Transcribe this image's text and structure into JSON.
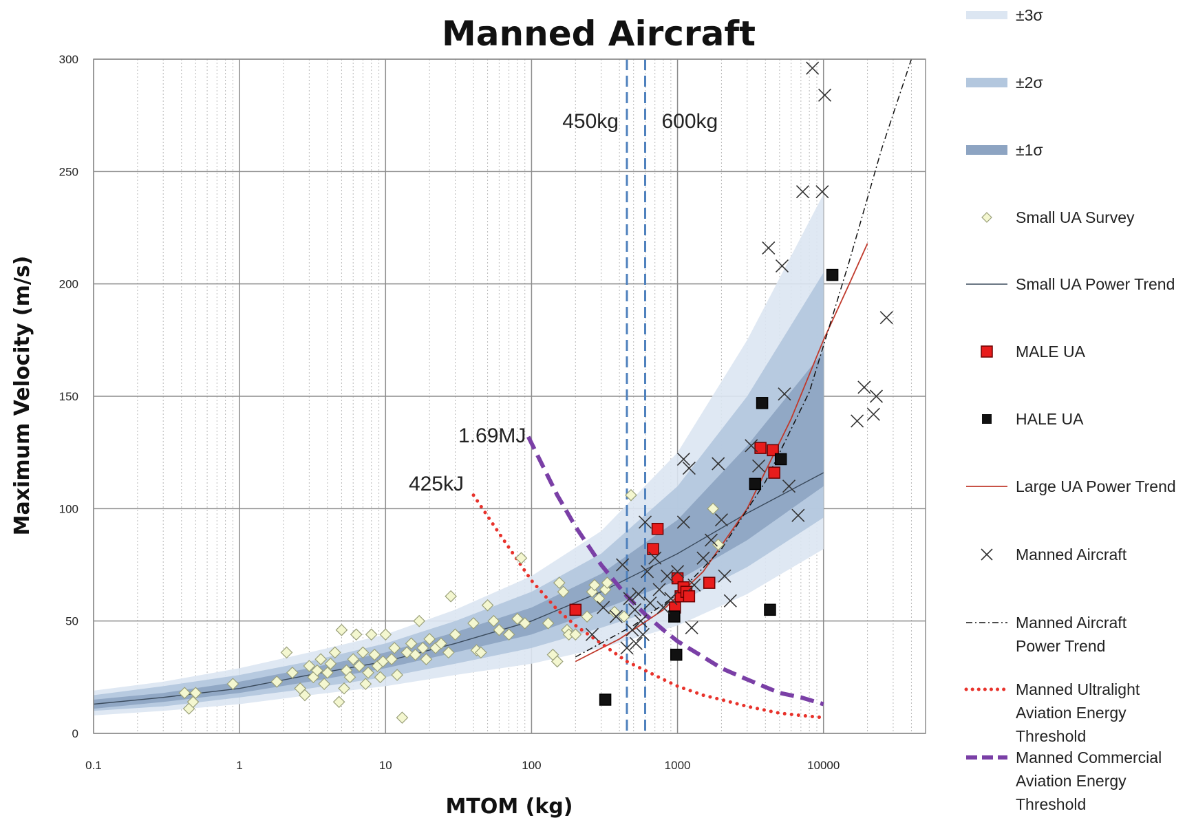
{
  "chart_data": {
    "type": "scatter",
    "title": "Manned Aircraft",
    "xlabel": "MTOM (kg)",
    "ylabel": "Maximum Velocity (m/s)",
    "xscale": "log",
    "xlim": [
      0.1,
      50000
    ],
    "ylim": [
      0,
      300
    ],
    "x_ticks": [
      0.1,
      1,
      10,
      100,
      1000,
      10000
    ],
    "x_tick_labels": [
      "0.1",
      "1",
      "10",
      "100",
      "1000",
      "10000"
    ],
    "y_ticks": [
      0,
      50,
      100,
      150,
      200,
      250,
      300
    ],
    "y_tick_labels": [
      "0",
      "50",
      "100",
      "150",
      "200",
      "250",
      "300"
    ],
    "grid": true,
    "legend_position": "right",
    "colors": {
      "band3": "#dce6f2",
      "band2": "#b3c7de",
      "band1": "#8da4c2",
      "small_ua": "#f4f7d0",
      "male": "#e81c1c",
      "hale": "#111111",
      "large_trend": "#c0392b",
      "ultralight": "#e8322b",
      "commercial": "#7a3fa6",
      "vline": "#4f81bd"
    },
    "annotations": [
      {
        "text": "450kg",
        "x": 450
      },
      {
        "text": "600kg",
        "x": 600
      },
      {
        "text": "1.69MJ",
        "x": 100,
        "y": 133
      },
      {
        "text": "425kJ",
        "x": 40,
        "y": 105
      }
    ],
    "vertical_lines": [
      450,
      600
    ],
    "bands": [
      {
        "name": "±3σ",
        "x": [
          0.1,
          0.3,
          1,
          3,
          10,
          30,
          100,
          300,
          1000,
          3000,
          10000
        ],
        "low": [
          8,
          10,
          13,
          17,
          21,
          26,
          31,
          38,
          48,
          62,
          82
        ],
        "high": [
          19,
          23,
          29,
          36,
          44,
          55,
          70,
          90,
          125,
          175,
          240
        ]
      },
      {
        "name": "±2σ",
        "x": [
          0.1,
          0.3,
          1,
          3,
          10,
          30,
          100,
          300,
          1000,
          3000,
          10000
        ],
        "low": [
          10,
          12,
          16,
          20,
          25,
          31,
          38,
          47,
          58,
          74,
          96
        ],
        "high": [
          17,
          21,
          26,
          32,
          40,
          50,
          63,
          80,
          110,
          150,
          205
        ]
      },
      {
        "name": "±1σ",
        "x": [
          0.1,
          0.3,
          1,
          3,
          10,
          30,
          100,
          300,
          1000,
          3000,
          10000
        ],
        "low": [
          11,
          14,
          18,
          23,
          29,
          36,
          44,
          55,
          68,
          86,
          110
        ],
        "high": [
          15,
          18,
          23,
          29,
          36,
          45,
          56,
          71,
          95,
          128,
          170
        ]
      }
    ],
    "series": [
      {
        "name": "Small UA Survey",
        "marker": "diamond",
        "points": [
          [
            0.42,
            18
          ],
          [
            0.45,
            11
          ],
          [
            0.48,
            14
          ],
          [
            0.5,
            18
          ],
          [
            0.9,
            22
          ],
          [
            1.8,
            23
          ],
          [
            2.1,
            36
          ],
          [
            2.3,
            27
          ],
          [
            2.6,
            20
          ],
          [
            2.8,
            17
          ],
          [
            3,
            30
          ],
          [
            3.2,
            25
          ],
          [
            3.4,
            28
          ],
          [
            3.6,
            33
          ],
          [
            3.8,
            22
          ],
          [
            4,
            27
          ],
          [
            4.2,
            31
          ],
          [
            4.5,
            36
          ],
          [
            4.8,
            14
          ],
          [
            5,
            46
          ],
          [
            5.2,
            20
          ],
          [
            5.4,
            28
          ],
          [
            5.7,
            25
          ],
          [
            6,
            33
          ],
          [
            6.3,
            44
          ],
          [
            6.6,
            30
          ],
          [
            7,
            36
          ],
          [
            7.3,
            22
          ],
          [
            7.6,
            27
          ],
          [
            8,
            44
          ],
          [
            8.4,
            35
          ],
          [
            8.8,
            30
          ],
          [
            9.2,
            25
          ],
          [
            9.6,
            32
          ],
          [
            10,
            44
          ],
          [
            11,
            33
          ],
          [
            11.5,
            38
          ],
          [
            12,
            26
          ],
          [
            13,
            7
          ],
          [
            14,
            36
          ],
          [
            15,
            40
          ],
          [
            16,
            35
          ],
          [
            17,
            50
          ],
          [
            18,
            38
          ],
          [
            19,
            33
          ],
          [
            20,
            42
          ],
          [
            22,
            38
          ],
          [
            24,
            40
          ],
          [
            27,
            36
          ],
          [
            28,
            61
          ],
          [
            30,
            44
          ],
          [
            40,
            49
          ],
          [
            42,
            37
          ],
          [
            45,
            36
          ],
          [
            50,
            57
          ],
          [
            55,
            50
          ],
          [
            60,
            46
          ],
          [
            70,
            44
          ],
          [
            80,
            51
          ],
          [
            85,
            78
          ],
          [
            90,
            49
          ],
          [
            130,
            49
          ],
          [
            140,
            35
          ],
          [
            150,
            32
          ],
          [
            155,
            67
          ],
          [
            165,
            63
          ],
          [
            175,
            46
          ],
          [
            180,
            44
          ],
          [
            200,
            44
          ],
          [
            240,
            52
          ],
          [
            260,
            63
          ],
          [
            270,
            66
          ],
          [
            290,
            60
          ],
          [
            320,
            64
          ],
          [
            330,
            67
          ],
          [
            370,
            54
          ],
          [
            430,
            52
          ],
          [
            480,
            106
          ],
          [
            1750,
            100
          ],
          [
            1900,
            84
          ]
        ]
      },
      {
        "name": "MALE UA",
        "marker": "square",
        "points": [
          [
            200,
            55
          ],
          [
            680,
            82
          ],
          [
            730,
            91
          ],
          [
            960,
            56
          ],
          [
            1000,
            69
          ],
          [
            1050,
            61
          ],
          [
            1100,
            65
          ],
          [
            1150,
            63
          ],
          [
            1200,
            61
          ],
          [
            1650,
            67
          ],
          [
            3700,
            127
          ],
          [
            4500,
            126
          ],
          [
            4600,
            116
          ]
        ]
      },
      {
        "name": "HALE UA",
        "marker": "square",
        "points": [
          [
            320,
            15
          ],
          [
            950,
            52
          ],
          [
            980,
            35
          ],
          [
            3400,
            111
          ],
          [
            3800,
            147
          ],
          [
            4300,
            55
          ],
          [
            5100,
            122
          ],
          [
            11500,
            204
          ]
        ]
      },
      {
        "name": "Manned Aircraft",
        "marker": "x",
        "points": [
          [
            260,
            44
          ],
          [
            310,
            56
          ],
          [
            380,
            52
          ],
          [
            420,
            75
          ],
          [
            450,
            38
          ],
          [
            470,
            60
          ],
          [
            490,
            46
          ],
          [
            510,
            55
          ],
          [
            520,
            40
          ],
          [
            540,
            62
          ],
          [
            560,
            50
          ],
          [
            580,
            44
          ],
          [
            600,
            94
          ],
          [
            620,
            72
          ],
          [
            650,
            58
          ],
          [
            700,
            78
          ],
          [
            750,
            64
          ],
          [
            800,
            56
          ],
          [
            850,
            70
          ],
          [
            900,
            60
          ],
          [
            1000,
            72
          ],
          [
            1100,
            122
          ],
          [
            1100,
            94
          ],
          [
            1200,
            118
          ],
          [
            1250,
            47
          ],
          [
            1300,
            66
          ],
          [
            1500,
            78
          ],
          [
            1700,
            86
          ],
          [
            1900,
            120
          ],
          [
            2000,
            95
          ],
          [
            2100,
            70
          ],
          [
            2300,
            59
          ],
          [
            3200,
            128
          ],
          [
            3600,
            119
          ],
          [
            4200,
            216
          ],
          [
            5200,
            208
          ],
          [
            5400,
            151
          ],
          [
            5800,
            110
          ],
          [
            6700,
            97
          ],
          [
            7200,
            241
          ],
          [
            8400,
            296
          ],
          [
            9800,
            241
          ],
          [
            10200,
            284
          ],
          [
            17000,
            139
          ],
          [
            19000,
            154
          ],
          [
            22000,
            142
          ],
          [
            23000,
            150
          ],
          [
            27000,
            185
          ]
        ]
      },
      {
        "name": "Small UA Power Trend",
        "type": "line",
        "x": [
          0.1,
          0.3,
          1,
          3,
          10,
          30,
          100,
          300,
          1000,
          3000,
          10000
        ],
        "y": [
          13,
          16,
          20,
          26,
          32,
          40,
          50,
          63,
          80,
          98,
          116
        ]
      },
      {
        "name": "Large UA Power Trend",
        "type": "line",
        "x": [
          200,
          400,
          800,
          1500,
          3000,
          6000,
          10000,
          15000,
          20000
        ],
        "y": [
          32,
          42,
          55,
          72,
          100,
          140,
          175,
          200,
          218
        ]
      },
      {
        "name": "Manned Aircraft Power Trend",
        "type": "line",
        "x": [
          200,
          500,
          1000,
          2000,
          4000,
          8000,
          15000,
          25000,
          40000
        ],
        "y": [
          34,
          48,
          62,
          82,
          112,
          152,
          210,
          260,
          300
        ]
      },
      {
        "name": "Manned Ultralight Aviation Energy Threshold",
        "type": "line",
        "x": [
          40,
          60,
          100,
          150,
          200,
          300,
          450,
          600,
          800,
          1000,
          1500,
          2000,
          3000,
          5000,
          7000,
          10000
        ],
        "y": [
          106,
          89,
          68,
          55,
          48,
          40,
          32,
          28,
          24,
          21,
          17,
          15,
          12,
          9,
          8,
          7
        ]
      },
      {
        "name": "Manned Commercial Aviation Energy Threshold",
        "type": "line",
        "x": [
          95,
          150,
          200,
          300,
          450,
          600,
          800,
          1000,
          1500,
          2000,
          3000,
          5000,
          7000,
          10000
        ],
        "y": [
          132,
          106,
          92,
          75,
          61,
          53,
          46,
          41,
          34,
          29,
          24,
          18,
          16,
          13
        ]
      }
    ],
    "legend": [
      {
        "label": "±3σ",
        "kind": "band3"
      },
      {
        "label": "±2σ",
        "kind": "band2"
      },
      {
        "label": "±1σ",
        "kind": "band1"
      },
      {
        "label": "Small UA Survey",
        "kind": "diamond"
      },
      {
        "label": "Small UA Power Trend",
        "kind": "line-dark"
      },
      {
        "label": "MALE UA",
        "kind": "square-red"
      },
      {
        "label": "HALE UA",
        "kind": "square-black"
      },
      {
        "label": "Large UA Power Trend",
        "kind": "line-red"
      },
      {
        "label": "Manned Aircraft",
        "kind": "x"
      },
      {
        "label": "Manned Aircraft Power Trend",
        "kind": "dashdot"
      },
      {
        "label": "Manned Ultralight Aviation Energy Threshold",
        "kind": "dotted-red"
      },
      {
        "label": "Manned Commercial Aviation Energy Threshold",
        "kind": "dashed-purple"
      }
    ]
  }
}
